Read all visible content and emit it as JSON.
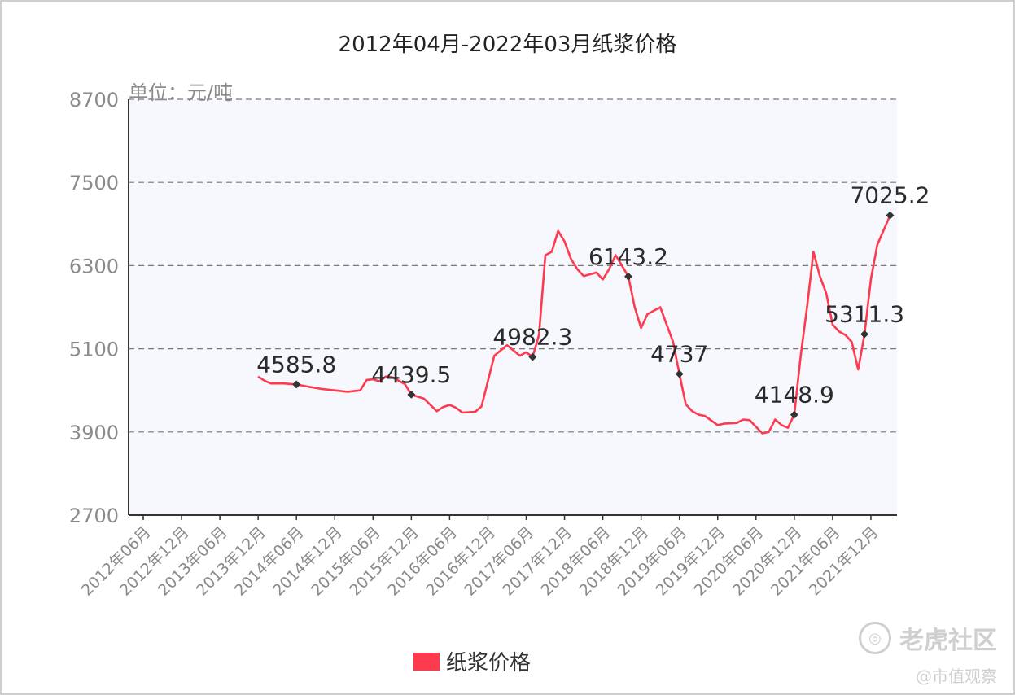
{
  "chart_data": {
    "type": "line",
    "title": "2012年04月-2022年03月纸浆价格",
    "unit_label": "单位：元/吨",
    "ylim": [
      2700,
      8700
    ],
    "y_ticks": [
      2700,
      3900,
      5100,
      6300,
      7500,
      8700
    ],
    "x_tick_labels": [
      "2012年06月",
      "2012年12月",
      "2013年06月",
      "2013年12月",
      "2014年06月",
      "2014年12月",
      "2015年06月",
      "2015年12月",
      "2016年06月",
      "2016年12月",
      "2017年06月",
      "2017年12月",
      "2018年06月",
      "2018年12月",
      "2019年06月",
      "2019年12月",
      "2020年06月",
      "2020年12月",
      "2021年06月",
      "2021年12月"
    ],
    "grid": true,
    "legend_position": "bottom",
    "series": [
      {
        "name": "纸浆价格",
        "color": "#fe3a4f",
        "points": [
          [
            "2013-12",
            4700
          ],
          [
            "2014-01",
            4640
          ],
          [
            "2014-02",
            4600
          ],
          [
            "2014-04",
            4600
          ],
          [
            "2014-06",
            4585.8
          ],
          [
            "2014-08",
            4550
          ],
          [
            "2014-10",
            4520
          ],
          [
            "2014-12",
            4500
          ],
          [
            "2015-02",
            4480
          ],
          [
            "2015-04",
            4500
          ],
          [
            "2015-05",
            4650
          ],
          [
            "2015-06",
            4660
          ],
          [
            "2015-07",
            4630
          ],
          [
            "2015-08",
            4700
          ],
          [
            "2015-09",
            4690
          ],
          [
            "2015-10",
            4640
          ],
          [
            "2015-11",
            4590
          ],
          [
            "2015-12",
            4439.5
          ],
          [
            "2016-02",
            4380
          ],
          [
            "2016-04",
            4200
          ],
          [
            "2016-05",
            4260
          ],
          [
            "2016-06",
            4290
          ],
          [
            "2016-07",
            4250
          ],
          [
            "2016-08",
            4180
          ],
          [
            "2016-10",
            4190
          ],
          [
            "2016-11",
            4270
          ],
          [
            "2017-01",
            5000
          ],
          [
            "2017-03",
            5150
          ],
          [
            "2017-05",
            5000
          ],
          [
            "2017-06",
            5050
          ],
          [
            "2017-07",
            4982.3
          ],
          [
            "2017-08",
            5300
          ],
          [
            "2017-09",
            6450
          ],
          [
            "2017-10",
            6500
          ],
          [
            "2017-11",
            6800
          ],
          [
            "2017-12",
            6650
          ],
          [
            "2018-01",
            6400
          ],
          [
            "2018-02",
            6250
          ],
          [
            "2018-03",
            6150
          ],
          [
            "2018-05",
            6200
          ],
          [
            "2018-06",
            6100
          ],
          [
            "2018-07",
            6250
          ],
          [
            "2018-08",
            6450
          ],
          [
            "2018-09",
            6300
          ],
          [
            "2018-10",
            6143.2
          ],
          [
            "2018-11",
            5700
          ],
          [
            "2018-12",
            5400
          ],
          [
            "2019-01",
            5600
          ],
          [
            "2019-03",
            5700
          ],
          [
            "2019-04",
            5450
          ],
          [
            "2019-05",
            5200
          ],
          [
            "2019-06",
            4737
          ],
          [
            "2019-07",
            4300
          ],
          [
            "2019-08",
            4200
          ],
          [
            "2019-09",
            4150
          ],
          [
            "2019-10",
            4130
          ],
          [
            "2019-12",
            4000
          ],
          [
            "2020-01",
            4020
          ],
          [
            "2020-03",
            4030
          ],
          [
            "2020-04",
            4080
          ],
          [
            "2020-05",
            4070
          ],
          [
            "2020-07",
            3880
          ],
          [
            "2020-08",
            3900
          ],
          [
            "2020-09",
            4080
          ],
          [
            "2020-10",
            4000
          ],
          [
            "2020-11",
            3960
          ],
          [
            "2020-12",
            4148.9
          ],
          [
            "2021-01",
            5000
          ],
          [
            "2021-02",
            5700
          ],
          [
            "2021-03",
            6500
          ],
          [
            "2021-04",
            6150
          ],
          [
            "2021-05",
            5900
          ],
          [
            "2021-06",
            5450
          ],
          [
            "2021-07",
            5350
          ],
          [
            "2021-08",
            5300
          ],
          [
            "2021-09",
            5200
          ],
          [
            "2021-10",
            4800
          ],
          [
            "2021-11",
            5311.3
          ],
          [
            "2021-12",
            6100
          ],
          [
            "2022-01",
            6600
          ],
          [
            "2022-03",
            7025.2
          ]
        ],
        "marker_points": [
          {
            "x": "2014-06",
            "y": 4585.8,
            "label": "4585.8"
          },
          {
            "x": "2015-12",
            "y": 4439.5,
            "label": "4439.5"
          },
          {
            "x": "2017-07",
            "y": 4982.3,
            "label": "4982.3"
          },
          {
            "x": "2018-10",
            "y": 6143.2,
            "label": "6143.2"
          },
          {
            "x": "2019-06",
            "y": 4737,
            "label": "4737"
          },
          {
            "x": "2020-12",
            "y": 4148.9,
            "label": "4148.9"
          },
          {
            "x": "2021-11",
            "y": 5311.3,
            "label": "5311.3"
          },
          {
            "x": "2022-03",
            "y": 7025.2,
            "label": "7025.2"
          }
        ]
      }
    ]
  },
  "legend": {
    "label": "纸浆价格",
    "color": "#fe3a4f"
  },
  "watermark": {
    "brand": "老虎社区",
    "sub": "@市值观察",
    "logo": "tiger-logo-icon"
  }
}
